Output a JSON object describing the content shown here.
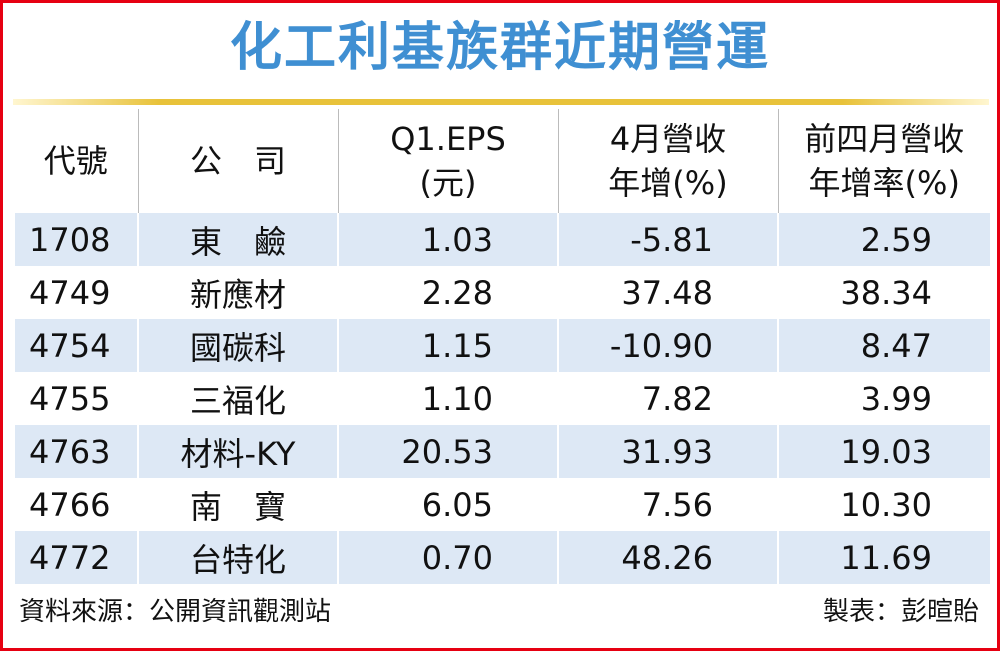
{
  "header": {
    "title": "化工利基族群近期營運"
  },
  "table": {
    "columns": [
      "代號",
      "公　司",
      "Q1.EPS\n(元)",
      "4月營收\n年增(%)",
      "前四月營收\n年增率(%)"
    ],
    "rows": [
      [
        "1708",
        "東　鹼",
        "1.03",
        "-5.81",
        "2.59"
      ],
      [
        "4749",
        "新應材",
        "2.28",
        "37.48",
        "38.34"
      ],
      [
        "4754",
        "國碳科",
        "1.15",
        "-10.90",
        "8.47"
      ],
      [
        "4755",
        "三福化",
        "1.10",
        "7.82",
        "3.99"
      ],
      [
        "4763",
        "材料-KY",
        "20.53",
        "31.93",
        "19.03"
      ],
      [
        "4766",
        "南　寶",
        "6.05",
        "7.56",
        "10.30"
      ],
      [
        "4772",
        "台特化",
        "0.70",
        "48.26",
        "11.69"
      ]
    ]
  },
  "footer": {
    "source": "資料來源：公開資訊觀測站",
    "maker": "製表：彭暄貽"
  }
}
